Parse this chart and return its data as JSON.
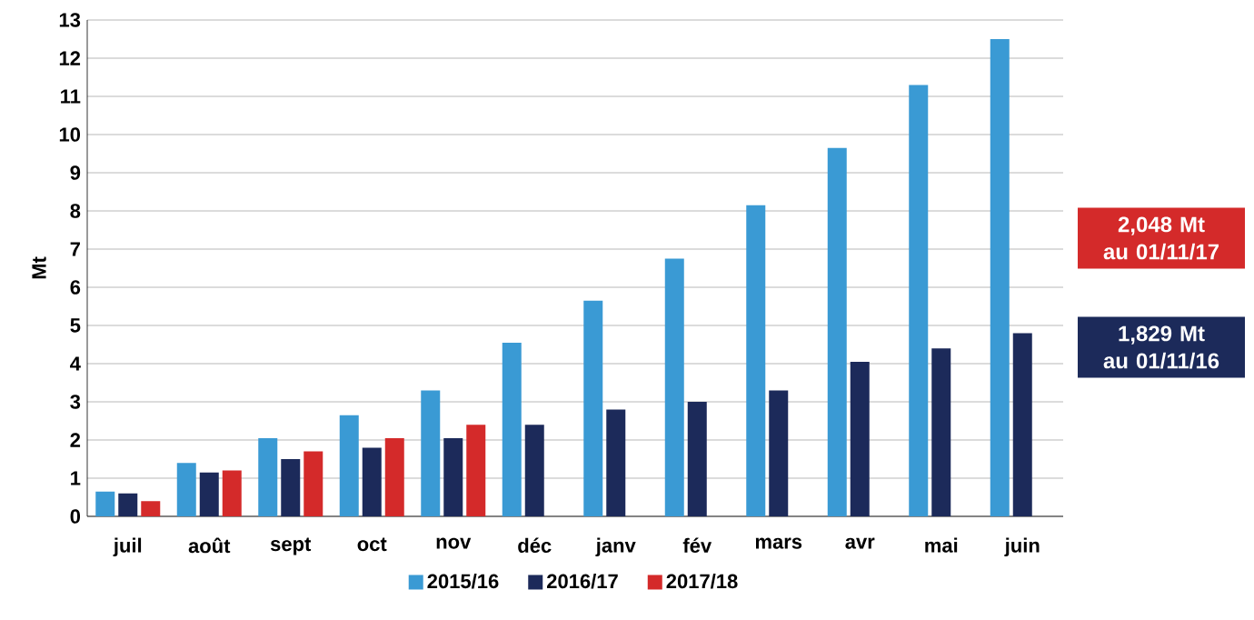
{
  "chart_data": {
    "type": "bar",
    "ylabel": "Mt",
    "categories": [
      "juil",
      "août",
      "sept",
      "oct",
      "nov",
      "déc",
      "janv",
      "fév",
      "mars",
      "avr",
      "mai",
      "juin"
    ],
    "series": [
      {
        "name": "2015/16",
        "color": "#3a9ad4",
        "values": [
          0.65,
          1.4,
          2.05,
          2.65,
          3.3,
          4.55,
          5.65,
          6.75,
          8.15,
          9.65,
          11.3,
          12.5
        ]
      },
      {
        "name": "2016/17",
        "color": "#1c2a5a",
        "values": [
          0.6,
          1.15,
          1.5,
          1.8,
          2.05,
          2.4,
          2.8,
          3.0,
          3.3,
          4.05,
          4.4,
          4.8
        ]
      },
      {
        "name": "2017/18",
        "color": "#d42a2a",
        "values": [
          0.4,
          1.2,
          1.7,
          2.05,
          2.4,
          null,
          null,
          null,
          null,
          null,
          null,
          null
        ]
      }
    ],
    "ylim": [
      0,
      13
    ],
    "yticks": [
      0,
      1,
      2,
      3,
      4,
      5,
      6,
      7,
      8,
      9,
      10,
      11,
      12,
      13
    ],
    "grid": "y",
    "legend": "bottom",
    "annotations": [
      "2,048 Mt au 01/11/17",
      "1,829 Mt au 01/11/16"
    ]
  }
}
